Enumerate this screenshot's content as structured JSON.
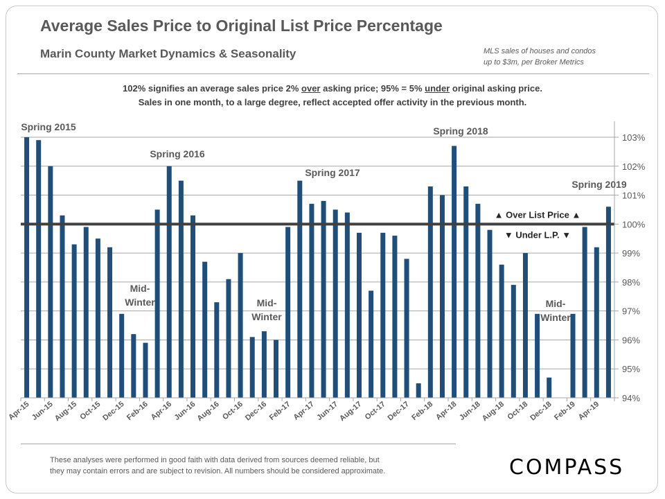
{
  "header": {
    "title": "Average Sales Price to Original List Price Percentage",
    "subtitle": "Marin County Market Dynamics  &  Seasonality",
    "source_line1": "MLS sales of houses and condos",
    "source_line2": "up to $3m, per Broker Metrics"
  },
  "note": {
    "line1_a": "102% signifies an average sales price 2% ",
    "line1_over": "over",
    "line1_b": " asking price; 95% = 5% ",
    "line1_under": "under",
    "line1_c": " original asking price.",
    "line2": "Sales in one month, to a large degree, reflect accepted offer activity in the previous month."
  },
  "footer": {
    "disclaimer_line1": "These analyses were performed in good faith with data derived from sources deemed reliable, but",
    "disclaimer_line2": "they may contain  errors and are subject to revision.  All numbers should be considered  approximate.",
    "logo": "COMPASS"
  },
  "colors": {
    "bar": "#1F4E79",
    "reference_line": "#404040",
    "grid": "#a6a6a6",
    "text": "#595959"
  },
  "chart_data": {
    "type": "bar",
    "title": "Average Sales Price to Original List Price Percentage",
    "xlabel": "",
    "ylabel": "",
    "y_axis_position": "right",
    "ylim": [
      94,
      103
    ],
    "y_ticks": [
      "94%",
      "95%",
      "96%",
      "97%",
      "98%",
      "99%",
      "100%",
      "101%",
      "102%",
      "103%"
    ],
    "y_tick_values": [
      94,
      95,
      96,
      97,
      98,
      99,
      100,
      101,
      102,
      103
    ],
    "grid": true,
    "reference_line": {
      "value": 100,
      "label_above": "▲ Over List Price ▲",
      "label_below": "▼ Under L.P. ▼"
    },
    "categories": [
      "Apr-15",
      "May-15",
      "Jun-15",
      "Jul-15",
      "Aug-15",
      "Sep-15",
      "Oct-15",
      "Nov-15",
      "Dec-15",
      "Jan-16",
      "Feb-16",
      "Mar-16",
      "Apr-16",
      "May-16",
      "Jun-16",
      "Jul-16",
      "Aug-16",
      "Sep-16",
      "Oct-16",
      "Nov-16",
      "Dec-16",
      "Jan-17",
      "Feb-17",
      "Mar-17",
      "Apr-17",
      "May-17",
      "Jun-17",
      "Jul-17",
      "Aug-17",
      "Sep-17",
      "Oct-17",
      "Nov-17",
      "Dec-17",
      "Jan-18",
      "Feb-18",
      "Mar-18",
      "Apr-18",
      "May-18",
      "Jun-18",
      "Jul-18",
      "Aug-18",
      "Sep-18",
      "Oct-18",
      "Nov-18",
      "Dec-18",
      "Jan-19",
      "Feb-19",
      "Mar-19",
      "Apr-19",
      "May-19"
    ],
    "x_tick_labels": [
      "Apr-15",
      "Jun-15",
      "Aug-15",
      "Oct-15",
      "Dec-15",
      "Feb-16",
      "Apr-16",
      "Jun-16",
      "Aug-16",
      "Oct-16",
      "Dec-16",
      "Feb-17",
      "Apr-17",
      "Jun-17",
      "Aug-17",
      "Oct-17",
      "Dec-17",
      "Feb-18",
      "Apr-18",
      "Jun-18",
      "Aug-18",
      "Oct-18",
      "Dec-18",
      "Feb-19",
      "Apr-19"
    ],
    "values": [
      103.0,
      102.9,
      102.0,
      100.3,
      99.3,
      99.9,
      99.5,
      99.2,
      96.9,
      96.2,
      95.9,
      100.5,
      102.0,
      101.5,
      100.3,
      98.7,
      97.3,
      98.1,
      99.0,
      96.1,
      96.3,
      96.0,
      99.9,
      101.5,
      100.7,
      100.8,
      100.5,
      100.4,
      99.7,
      97.7,
      99.7,
      99.6,
      98.8,
      94.5,
      101.3,
      101.0,
      102.7,
      101.3,
      100.7,
      99.8,
      98.6,
      97.9,
      99.0,
      96.9,
      94.7,
      null,
      96.9,
      99.9,
      99.2,
      100.6
    ],
    "annotations": [
      {
        "text": "Spring 2015",
        "at": "Apr-15"
      },
      {
        "text": "Spring 2016",
        "at": "Apr-16"
      },
      {
        "text": "Spring 2017",
        "at": "Apr-17"
      },
      {
        "text": "Spring 2018",
        "at": "Apr-18"
      },
      {
        "text": "Spring 2019",
        "at": "May-19"
      },
      {
        "text": "Mid-\nWinter",
        "at": "Jan-16"
      },
      {
        "text": "Mid-\nWinter",
        "at": "Dec-16"
      },
      {
        "text": "Mid-\nWinter",
        "at": "Jan-19"
      }
    ]
  }
}
